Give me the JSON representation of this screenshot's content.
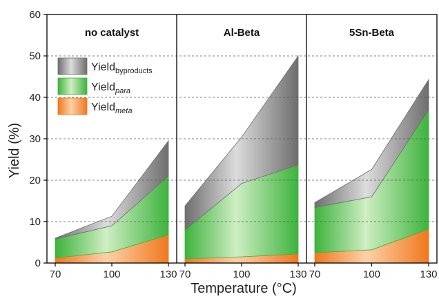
{
  "chart_data": {
    "type": "area",
    "ylabel": "Yield (%)",
    "xlabel": "Temperature (°C)",
    "ylim": [
      0,
      60
    ],
    "yticks": [
      "0",
      "10",
      "20",
      "30",
      "40",
      "50",
      "60"
    ],
    "x": [
      70,
      100,
      130
    ],
    "xtick_labels": [
      "70",
      "100",
      "130"
    ],
    "grid": "horizontal dashed",
    "legend": {
      "placement": "top-left of first panel",
      "entries": [
        {
          "main": "Yield",
          "sub": "byproducts",
          "italic": false
        },
        {
          "main": "Yield",
          "sub": "para",
          "italic": true
        },
        {
          "main": "Yield",
          "sub": "meta",
          "italic": true
        }
      ]
    },
    "stack_order": [
      "meta",
      "para",
      "byproducts"
    ],
    "colors": {
      "meta": {
        "light": "#fdd1a8",
        "dark": "#f0781e"
      },
      "para": {
        "light": "#cfeec4",
        "dark": "#3db33d"
      },
      "byproducts": {
        "light": "#dcdcdc",
        "dark": "#6e6e6e"
      }
    },
    "panels": [
      {
        "title": "no catalyst",
        "series": [
          {
            "name": "Yield meta",
            "values": [
              1.2,
              2.7,
              6.8
            ]
          },
          {
            "name": "Yield para",
            "values": [
              4.6,
              6.3,
              14.2
            ]
          },
          {
            "name": "Yield byproducts",
            "values": [
              0.2,
              2.3,
              8.5
            ]
          }
        ]
      },
      {
        "title": "Al-Beta",
        "series": [
          {
            "name": "Yield meta",
            "values": [
              1.0,
              1.5,
              2.2
            ]
          },
          {
            "name": "Yield para",
            "values": [
              7.0,
              17.7,
              21.5
            ]
          },
          {
            "name": "Yield byproducts",
            "values": [
              5.8,
              11.2,
              26.3
            ]
          }
        ]
      },
      {
        "title": "5Sn-Beta",
        "series": [
          {
            "name": "Yield meta",
            "values": [
              2.5,
              3.2,
              8.2
            ]
          },
          {
            "name": "Yield para",
            "values": [
              10.9,
              12.8,
              28.8
            ]
          },
          {
            "name": "Yield byproducts",
            "values": [
              1.2,
              6.6,
              7.3
            ]
          }
        ]
      }
    ]
  }
}
